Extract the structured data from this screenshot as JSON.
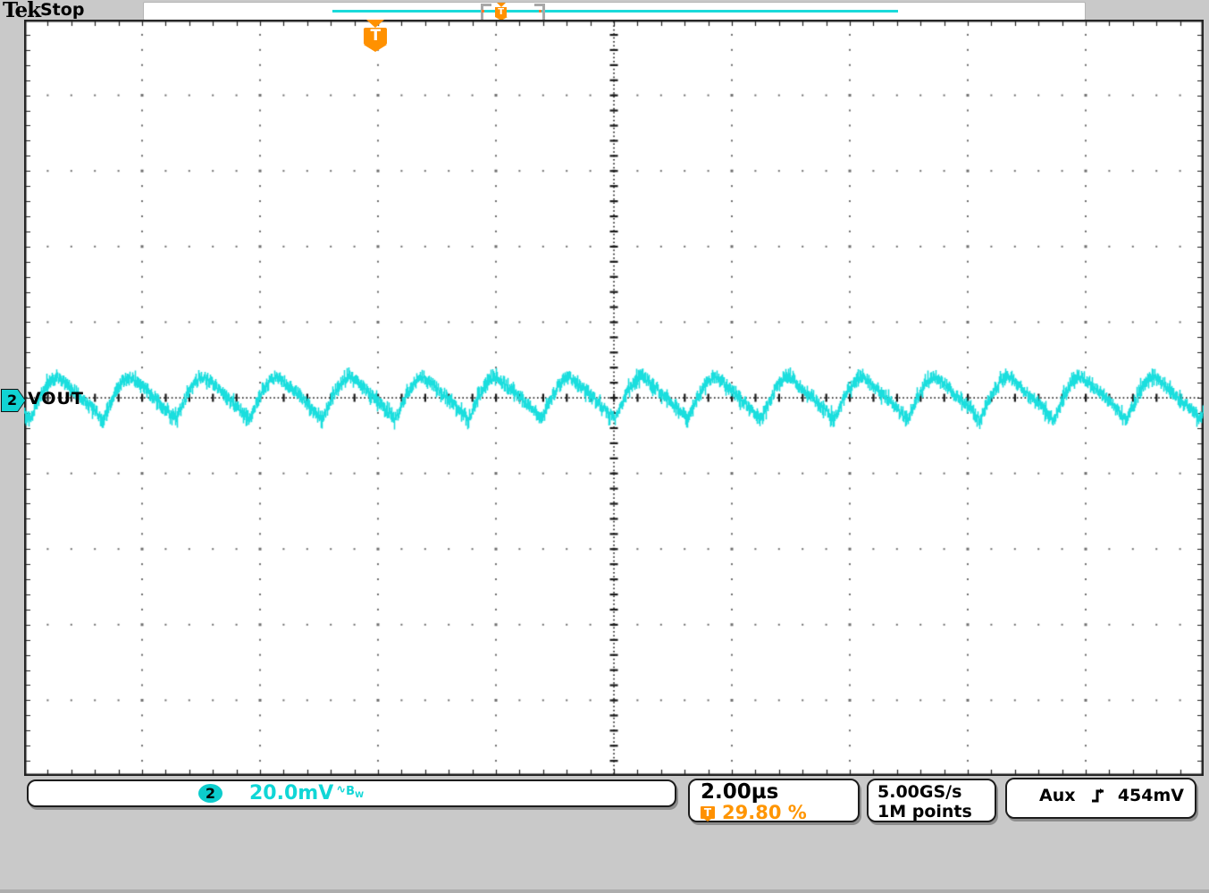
{
  "header": {
    "brand": "Tek",
    "status": "Stop"
  },
  "record_view": {
    "description": "acquisition record bar with zoom window brackets",
    "trigger_flag": "T",
    "trigger_position_pct": 29.8
  },
  "channel": {
    "badge": "2",
    "label": "VOUT",
    "scale": "20.0mV",
    "coupling_symbol": "∿",
    "bandwidth_main": "B",
    "bandwidth_sub": "W",
    "color": "#10d6d6"
  },
  "horizontal": {
    "scale": "2.00µs",
    "trigger_flag": "T",
    "trigger_position": "29.80 %"
  },
  "acquisition": {
    "sample_rate": "5.00GS/s",
    "record_length": "1M points"
  },
  "trigger": {
    "source": "Aux",
    "slope": "rising-edge",
    "level": "454mV",
    "color": "#ff9100"
  },
  "chart_data": {
    "type": "line",
    "title": "Oscilloscope graticule with CH2 output ripple (VOUT)",
    "series": [
      {
        "name": "CH2 VOUT",
        "color": "#1adede"
      }
    ],
    "divisions": {
      "x": 10,
      "y": 10,
      "minor_per_div": 5
    },
    "horizontal_scale_us_per_div": 2.0,
    "vertical_scale_mV_per_div": 20.0,
    "trigger_position_pct": 29.8,
    "grid": {
      "style": "dotted graticule, ticked center cross",
      "dot_color": "#6e6e6e",
      "center_color": "#1a1a1a",
      "border_color": "#1f1f1f",
      "background": "#ffffff"
    },
    "waveform": {
      "shape": "asymmetric switching ripple: fast rounded rise, slower sawtooth fall, noisy band",
      "period_us": 1.24,
      "frequency_kHz": 807,
      "ripple_peak_mV": 5.4,
      "ripple_trough_mV": -5.7,
      "peak_to_peak_mV": 11.1,
      "rise_fraction": 0.39,
      "noise_band_mV": 2.2,
      "reference": "CH2 marker at vertical screen center"
    }
  }
}
